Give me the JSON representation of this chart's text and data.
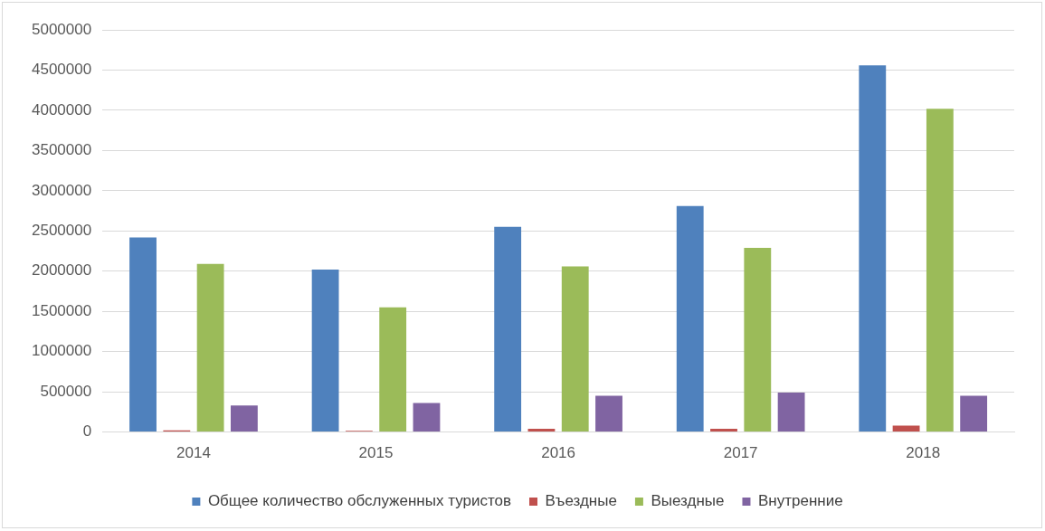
{
  "chart_data": {
    "type": "bar",
    "categories": [
      "2014",
      "2015",
      "2016",
      "2017",
      "2018"
    ],
    "series": [
      {
        "name": "Общее количество обслуженных туристов",
        "color": "#4f81bd",
        "values": [
          2420000,
          2020000,
          2550000,
          2810000,
          4560000
        ]
      },
      {
        "name": "Въездные",
        "color": "#c0504d",
        "values": [
          20000,
          15000,
          40000,
          40000,
          80000
        ]
      },
      {
        "name": "Выездные",
        "color": "#9bbb59",
        "values": [
          2090000,
          1550000,
          2060000,
          2290000,
          4020000
        ]
      },
      {
        "name": "Внутренние",
        "color": "#8064a2",
        "values": [
          330000,
          360000,
          450000,
          490000,
          450000
        ]
      }
    ],
    "ylim": [
      0,
      5000000
    ],
    "yticks": [
      0,
      500000,
      1000000,
      1500000,
      2000000,
      2500000,
      3000000,
      3500000,
      4000000,
      4500000,
      5000000
    ],
    "grid": "y",
    "legend": "bottom"
  }
}
